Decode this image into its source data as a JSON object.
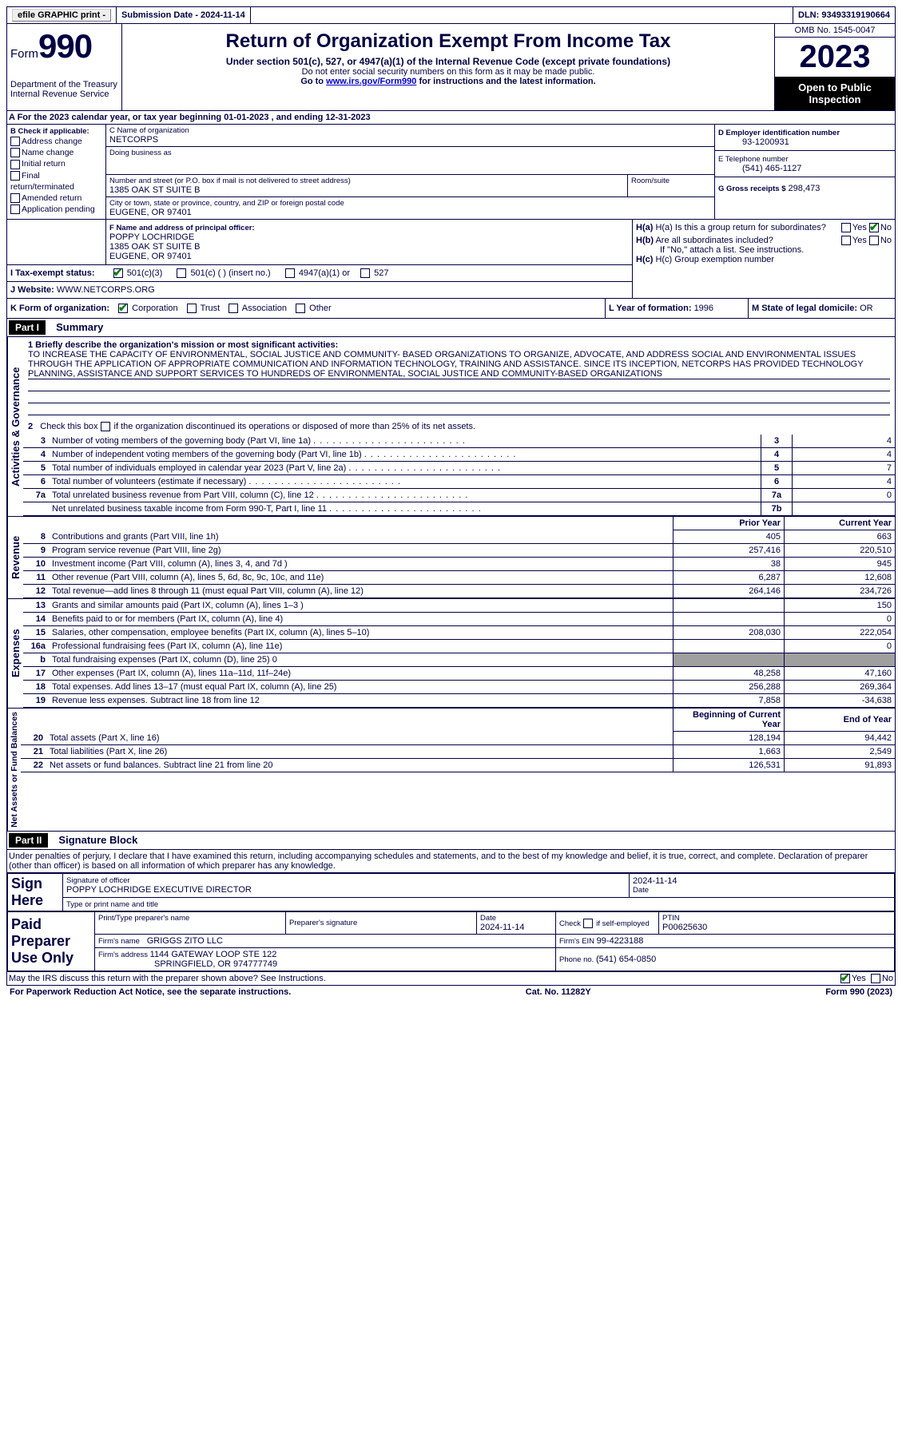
{
  "topbar": {
    "efile": "efile GRAPHIC print -",
    "submission": "Submission Date - 2024-11-14",
    "dln": "DLN: 93493319190664"
  },
  "header": {
    "form_word": "Form",
    "form_num": "990",
    "title": "Return of Organization Exempt From Income Tax",
    "subtitle": "Under section 501(c), 527, or 4947(a)(1) of the Internal Revenue Code (except private foundations)",
    "ssn_note": "Do not enter social security numbers on this form as it may be made public.",
    "goto": "Go to www.irs.gov/Form990 for instructions and the latest information.",
    "dept": "Department of the Treasury Internal Revenue Service",
    "omb": "OMB No. 1545-0047",
    "year": "2023",
    "inspection": "Open to Public Inspection"
  },
  "sectionA": {
    "line": "A For the 2023 calendar year, or tax year beginning 01-01-2023   , and ending 12-31-2023",
    "b_label": "B Check if applicable:",
    "b_opts": [
      "Address change",
      "Name change",
      "Initial return",
      "Final return/terminated",
      "Amended return",
      "Application pending"
    ],
    "c_name_label": "C Name of organization",
    "c_name": "NETCORPS",
    "dba_label": "Doing business as",
    "addr_label": "Number and street (or P.O. box if mail is not delivered to street address)",
    "addr": "1385 OAK ST SUITE B",
    "room_label": "Room/suite",
    "city_label": "City or town, state or province, country, and ZIP or foreign postal code",
    "city": "EUGENE, OR  97401",
    "d_label": "D Employer identification number",
    "d_val": "93-1200931",
    "e_label": "E Telephone number",
    "e_val": "(541) 465-1127",
    "g_label": "G Gross receipts $",
    "g_val": "298,473",
    "f_label": "F  Name and address of principal officer:",
    "f_name": "POPPY LOCHRIDGE",
    "f_addr1": "1385 OAK ST SUITE B",
    "f_addr2": "EUGENE, OR  97401",
    "i_label": "I   Tax-exempt status:",
    "i_501c3": "501(c)(3)",
    "i_501c": "501(c) (  ) (insert no.)",
    "i_4947": "4947(a)(1) or",
    "i_527": "527",
    "j_label": "J   Website: ",
    "j_val": "WWW.NETCORPS.ORG",
    "ha_label": "H(a)  Is this a group return for subordinates?",
    "hb_label": "H(b)  Are all subordinates included?",
    "hb_note": "If \"No,\" attach a list. See instructions.",
    "hc_label": "H(c)  Group exemption number",
    "yes": "Yes",
    "no": "No",
    "k_label": "K Form of organization:",
    "k_opts": [
      "Corporation",
      "Trust",
      "Association",
      "Other"
    ],
    "l_label": "L Year of formation: ",
    "l_val": "1996",
    "m_label": "M State of legal domicile: ",
    "m_val": "OR"
  },
  "part1": {
    "header": "Part I",
    "title": "Summary",
    "mission_label": "1   Briefly describe the organization's mission or most significant activities:",
    "mission": "TO INCREASE THE CAPACITY OF ENVIRONMENTAL, SOCIAL JUSTICE AND COMMUNITY- BASED ORGANIZATIONS TO ORGANIZE, ADVOCATE, AND ADDRESS SOCIAL AND ENVIRONMENTAL ISSUES THROUGH THE APPLICATION OF APPROPRIATE COMMUNICATION AND INFORMATION TECHNOLOGY, TRAINING AND ASSISTANCE. SINCE ITS INCEPTION, NETCORPS HAS PROVIDED TECHNOLOGY PLANNING, ASSISTANCE AND SUPPORT SERVICES TO HUNDREDS OF ENVIRONMENTAL, SOCIAL JUSTICE AND COMMUNITY-BASED ORGANIZATIONS",
    "line2": "Check this box       if the organization discontinued its operations or disposed of more than 25% of its net assets.",
    "rows_gov": [
      {
        "n": "3",
        "t": "Number of voting members of the governing body (Part VI, line 1a)",
        "box": "3",
        "v": "4"
      },
      {
        "n": "4",
        "t": "Number of independent voting members of the governing body (Part VI, line 1b)",
        "box": "4",
        "v": "4"
      },
      {
        "n": "5",
        "t": "Total number of individuals employed in calendar year 2023 (Part V, line 2a)",
        "box": "5",
        "v": "7"
      },
      {
        "n": "6",
        "t": "Total number of volunteers (estimate if necessary)",
        "box": "6",
        "v": "4"
      },
      {
        "n": "7a",
        "t": "Total unrelated business revenue from Part VIII, column (C), line 12",
        "box": "7a",
        "v": "0"
      },
      {
        "n": "",
        "t": "Net unrelated business taxable income from Form 990-T, Part I, line 11",
        "box": "7b",
        "v": ""
      }
    ],
    "prior_hdr": "Prior Year",
    "curr_hdr": "Current Year",
    "revenue": [
      {
        "n": "8",
        "t": "Contributions and grants (Part VIII, line 1h)",
        "p": "405",
        "c": "663"
      },
      {
        "n": "9",
        "t": "Program service revenue (Part VIII, line 2g)",
        "p": "257,416",
        "c": "220,510"
      },
      {
        "n": "10",
        "t": "Investment income (Part VIII, column (A), lines 3, 4, and 7d )",
        "p": "38",
        "c": "945"
      },
      {
        "n": "11",
        "t": "Other revenue (Part VIII, column (A), lines 5, 6d, 8c, 9c, 10c, and 11e)",
        "p": "6,287",
        "c": "12,608"
      },
      {
        "n": "12",
        "t": "Total revenue—add lines 8 through 11 (must equal Part VIII, column (A), line 12)",
        "p": "264,146",
        "c": "234,726"
      }
    ],
    "expenses": [
      {
        "n": "13",
        "t": "Grants and similar amounts paid (Part IX, column (A), lines 1–3 )",
        "p": "",
        "c": "150"
      },
      {
        "n": "14",
        "t": "Benefits paid to or for members (Part IX, column (A), line 4)",
        "p": "",
        "c": "0"
      },
      {
        "n": "15",
        "t": "Salaries, other compensation, employee benefits (Part IX, column (A), lines 5–10)",
        "p": "208,030",
        "c": "222,054"
      },
      {
        "n": "16a",
        "t": "Professional fundraising fees (Part IX, column (A), line 11e)",
        "p": "",
        "c": "0"
      },
      {
        "n": "b",
        "t": "Total fundraising expenses (Part IX, column (D), line 25) 0",
        "p": "GRAY",
        "c": "GRAY"
      },
      {
        "n": "17",
        "t": "Other expenses (Part IX, column (A), lines 11a–11d, 11f–24e)",
        "p": "48,258",
        "c": "47,160"
      },
      {
        "n": "18",
        "t": "Total expenses. Add lines 13–17 (must equal Part IX, column (A), line 25)",
        "p": "256,288",
        "c": "269,364"
      },
      {
        "n": "19",
        "t": "Revenue less expenses. Subtract line 18 from line 12",
        "p": "7,858",
        "c": "-34,638"
      }
    ],
    "begin_hdr": "Beginning of Current Year",
    "end_hdr": "End of Year",
    "net": [
      {
        "n": "20",
        "t": "Total assets (Part X, line 16)",
        "p": "128,194",
        "c": "94,442"
      },
      {
        "n": "21",
        "t": "Total liabilities (Part X, line 26)",
        "p": "1,663",
        "c": "2,549"
      },
      {
        "n": "22",
        "t": "Net assets or fund balances. Subtract line 21 from line 20",
        "p": "126,531",
        "c": "91,893"
      }
    ],
    "vert_gov": "Activities & Governance",
    "vert_rev": "Revenue",
    "vert_exp": "Expenses",
    "vert_net": "Net Assets or Fund Balances"
  },
  "part2": {
    "header": "Part II",
    "title": "Signature Block",
    "perjury": "Under penalties of perjury, I declare that I have examined this return, including accompanying schedules and statements, and to the best of my knowledge and belief, it is true, correct, and complete. Declaration of preparer (other than officer) is based on all information of which preparer has any knowledge.",
    "sign_here": "Sign Here",
    "sig_officer": "Signature of officer",
    "sig_name": "POPPY LOCHRIDGE  EXECUTIVE DIRECTOR",
    "sig_type": "Type or print name and title",
    "date": "Date",
    "date_val": "2024-11-14",
    "paid": "Paid Preparer Use Only",
    "prep_name_label": "Print/Type preparer's name",
    "prep_sig_label": "Preparer's signature",
    "check_self": "Check        if self-employed",
    "ptin_label": "PTIN",
    "ptin": "P00625630",
    "firm_name_label": "Firm's name   ",
    "firm_name": "GRIGGS ZITO LLC",
    "firm_ein_label": "Firm's EIN  ",
    "firm_ein": "99-4223188",
    "firm_addr_label": "Firm's address ",
    "firm_addr": "1144 GATEWAY LOOP STE 122",
    "firm_city": "SPRINGFIELD, OR  974777749",
    "phone_label": "Phone no. ",
    "phone": "(541) 654-0850",
    "discuss": "May the IRS discuss this return with the preparer shown above? See Instructions.",
    "footer_left": "For Paperwork Reduction Act Notice, see the separate instructions.",
    "footer_mid": "Cat. No. 11282Y",
    "footer_right": "Form 990 (2023)"
  }
}
